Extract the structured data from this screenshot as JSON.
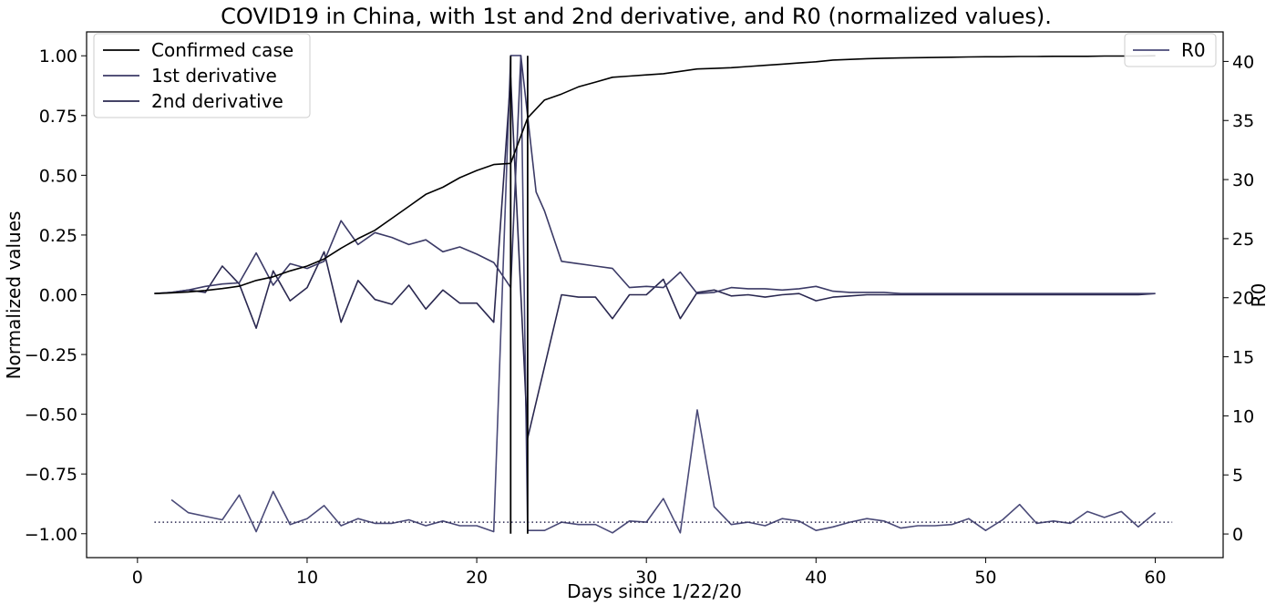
{
  "chart_data": {
    "type": "line",
    "title": "COVID19 in China, with 1st and 2nd derivative, and R0 (normalized values).",
    "xlabel": "Days since 1/22/20",
    "ylabel_left": "Normalized values",
    "ylabel_right": "R0",
    "xlim": [
      -3,
      64
    ],
    "ylim_left": [
      -1.1,
      1.1
    ],
    "ylim_right": [
      -2,
      42.5
    ],
    "x_ticks": [
      0,
      10,
      20,
      30,
      40,
      50,
      60
    ],
    "y_ticks_left": [
      1.0,
      0.75,
      0.5,
      0.25,
      0.0,
      -0.25,
      -0.5,
      -0.75,
      -1.0
    ],
    "y_tick_labels_left": [
      "1.00",
      "0.75",
      "0.50",
      "0.25",
      "0.00",
      "−0.25",
      "−0.50",
      "−0.75",
      "−1.00"
    ],
    "y_ticks_right": [
      0,
      5,
      10,
      15,
      20,
      25,
      30,
      35,
      40
    ],
    "legend_left": {
      "placement": "top-left",
      "entries": [
        "Confirmed case",
        "1st derivative",
        "2nd derivative"
      ]
    },
    "legend_right": {
      "placement": "top-right",
      "entries": [
        "R0"
      ]
    },
    "colors": {
      "confirmed": "#000000",
      "first_derivative": "#3b3a66",
      "second_derivative": "#2a2850",
      "r0": "#4a4a78",
      "vlines": "#000000",
      "reference": "#2a2850"
    },
    "series": [
      {
        "name": "Confirmed case",
        "axis": "left",
        "x": [
          1,
          2,
          3,
          4,
          5,
          6,
          7,
          8,
          9,
          10,
          11,
          12,
          13,
          14,
          15,
          16,
          17,
          18,
          19,
          20,
          21,
          22,
          23,
          24,
          25,
          26,
          27,
          28,
          29,
          30,
          31,
          32,
          33,
          34,
          35,
          36,
          37,
          38,
          39,
          40,
          41,
          42,
          43,
          44,
          45,
          46,
          47,
          48,
          49,
          50,
          51,
          52,
          53,
          54,
          55,
          56,
          57,
          58,
          59,
          60
        ],
        "y": [
          0.005,
          0.008,
          0.012,
          0.018,
          0.026,
          0.036,
          0.06,
          0.075,
          0.1,
          0.12,
          0.15,
          0.195,
          0.235,
          0.27,
          0.32,
          0.37,
          0.42,
          0.45,
          0.49,
          0.52,
          0.545,
          0.55,
          0.74,
          0.815,
          0.84,
          0.87,
          0.89,
          0.91,
          0.915,
          0.92,
          0.925,
          0.935,
          0.945,
          0.947,
          0.95,
          0.955,
          0.96,
          0.965,
          0.97,
          0.975,
          0.982,
          0.985,
          0.988,
          0.99,
          0.991,
          0.992,
          0.993,
          0.994,
          0.995,
          0.996,
          0.996,
          0.997,
          0.997,
          0.998,
          0.998,
          0.998,
          0.999,
          0.999,
          0.999,
          1.0
        ]
      },
      {
        "name": "1st derivative",
        "axis": "left",
        "x": [
          1,
          2,
          3,
          4,
          5,
          6,
          7,
          8,
          9,
          10,
          11,
          12,
          13,
          14,
          15,
          16,
          17,
          18,
          19,
          20,
          21,
          22,
          22.6,
          23.5,
          24,
          25,
          26,
          27,
          28,
          29,
          30,
          31,
          32,
          33,
          34,
          35,
          36,
          37,
          38,
          39,
          40,
          41,
          42,
          43,
          44,
          45,
          46,
          47,
          48,
          49,
          50,
          51,
          52,
          53,
          54,
          55,
          56,
          57,
          58,
          59,
          60
        ],
        "y": [
          0.005,
          0.01,
          0.02,
          0.035,
          0.045,
          0.05,
          0.175,
          0.04,
          0.13,
          0.11,
          0.14,
          0.31,
          0.21,
          0.26,
          0.24,
          0.21,
          0.23,
          0.18,
          0.2,
          0.17,
          0.135,
          0.03,
          1.0,
          0.43,
          0.35,
          0.14,
          0.13,
          0.12,
          0.11,
          0.03,
          0.035,
          0.03,
          0.095,
          0.005,
          0.01,
          0.03,
          0.025,
          0.025,
          0.02,
          0.025,
          0.035,
          0.015,
          0.01,
          0.01,
          0.01,
          0.005,
          0.005,
          0.005,
          0.005,
          0.005,
          0.005,
          0.005,
          0.005,
          0.005,
          0.005,
          0.005,
          0.005,
          0.005,
          0.005,
          0.005,
          0.005
        ]
      },
      {
        "name": "2nd derivative",
        "axis": "left",
        "x": [
          1,
          2,
          3,
          4,
          5,
          6,
          7,
          8,
          9,
          10,
          11,
          12,
          13,
          14,
          15,
          16,
          17,
          18,
          19,
          20,
          21,
          22,
          23,
          25,
          26,
          27,
          28,
          29,
          30,
          31,
          32,
          33,
          34,
          35,
          36,
          37,
          38,
          39,
          40,
          41,
          42,
          43,
          44,
          45,
          46,
          47,
          48,
          49,
          50,
          51,
          52,
          53,
          54,
          55,
          56,
          57,
          58,
          59,
          60
        ],
        "y": [
          0.005,
          0.01,
          0.02,
          0.01,
          0.12,
          0.045,
          -0.14,
          0.1,
          -0.025,
          0.03,
          0.18,
          -0.115,
          0.06,
          -0.02,
          -0.04,
          0.04,
          -0.06,
          0.02,
          -0.035,
          -0.035,
          -0.115,
          0.91,
          -0.6,
          0.0,
          -0.01,
          -0.01,
          -0.1,
          0.0,
          0.0,
          0.065,
          -0.1,
          0.01,
          0.02,
          -0.005,
          0.0,
          -0.01,
          0.0,
          0.005,
          -0.025,
          -0.01,
          -0.005,
          0.0,
          0.0,
          0.0,
          0.0,
          0.0,
          0.0,
          0.0,
          0.0,
          0.0,
          0.0,
          0.0,
          0.0,
          0.0,
          0.0,
          0.0,
          0.0,
          0.0,
          0.005
        ]
      },
      {
        "name": "R0",
        "axis": "right",
        "x": [
          2,
          3,
          4,
          5,
          6,
          7,
          8,
          9,
          10,
          11,
          12,
          13,
          14,
          15,
          16,
          17,
          18,
          19,
          20,
          21,
          22,
          22.6,
          23,
          24,
          25,
          26,
          27,
          28,
          29,
          30,
          31,
          32,
          33,
          34,
          35,
          36,
          37,
          38,
          39,
          40,
          41,
          42,
          43,
          44,
          45,
          46,
          47,
          48,
          49,
          50,
          51,
          52,
          53,
          54,
          55,
          56,
          57,
          58,
          59,
          60
        ],
        "y": [
          2.9,
          1.8,
          1.5,
          1.2,
          3.3,
          0.2,
          3.6,
          0.8,
          1.3,
          2.4,
          0.7,
          1.3,
          0.9,
          0.9,
          1.2,
          0.7,
          1.1,
          0.7,
          0.7,
          0.2,
          40.5,
          40.5,
          0.3,
          0.3,
          1.0,
          0.8,
          0.8,
          0.1,
          1.1,
          1.0,
          3.0,
          0.1,
          10.5,
          2.3,
          0.8,
          1.0,
          0.7,
          1.3,
          1.1,
          0.3,
          0.6,
          1.0,
          1.3,
          1.1,
          0.5,
          0.7,
          0.7,
          0.8,
          1.3,
          0.3,
          1.2,
          2.5,
          0.9,
          1.1,
          0.9,
          1.9,
          1.4,
          1.9,
          0.6,
          1.8
        ]
      }
    ],
    "vertical_lines": [
      {
        "x": 22,
        "y_from": -1.0,
        "y_to": 1.0
      },
      {
        "x": 23,
        "y_from": -1.0,
        "y_to": 1.0
      }
    ],
    "reference_line": {
      "axis": "right",
      "y": 1,
      "x_from": 1,
      "x_to": 61,
      "style": "dotted"
    }
  }
}
